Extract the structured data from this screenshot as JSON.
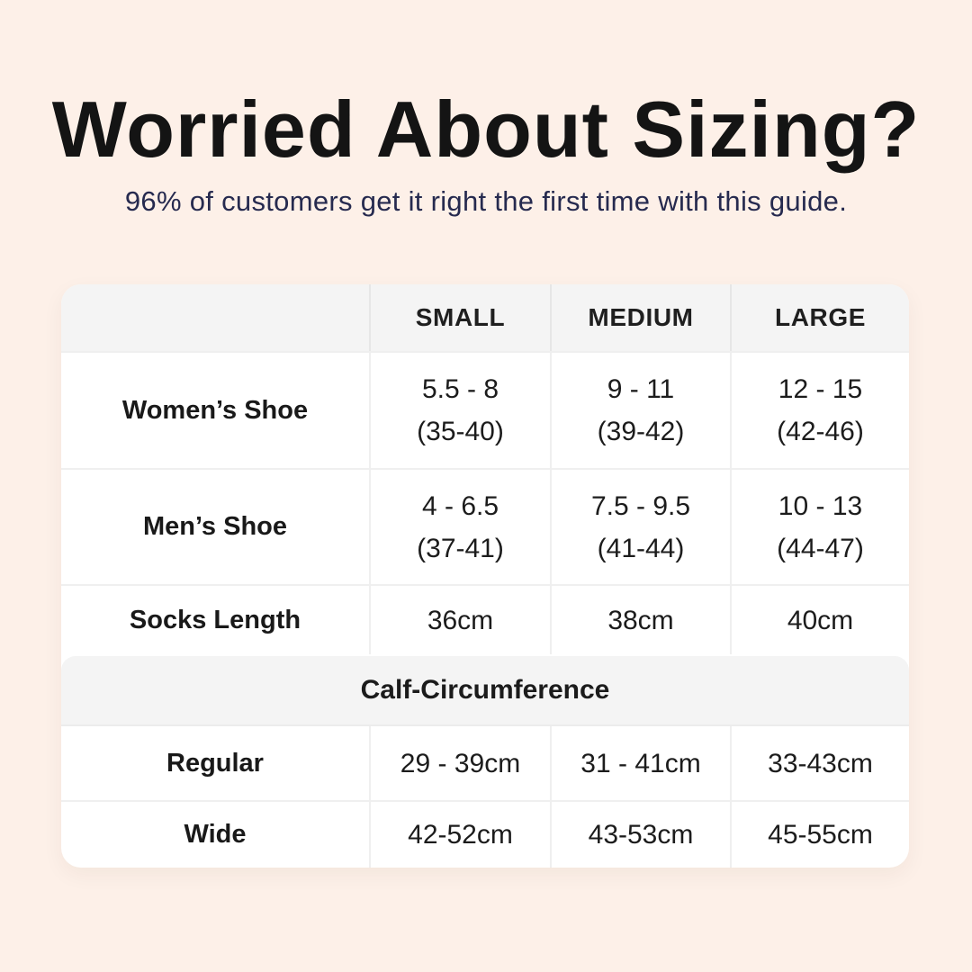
{
  "page": {
    "background_color": "#fdf0e8",
    "card_color": "#ffffff",
    "band_color": "#f4f4f4",
    "subtitle_color": "#262a4f",
    "title_color": "#141414"
  },
  "hero": {
    "title": "Worried About Sizing?",
    "subtitle": "96% of customers get it right the first time with this guide."
  },
  "table": {
    "columns": [
      "",
      "SMALL",
      "MEDIUM",
      "LARGE"
    ],
    "rows": [
      {
        "label": "Women’s Shoe",
        "values": [
          [
            "5.5 - 8",
            "(35-40)"
          ],
          [
            "9 - 11",
            "(39-42)"
          ],
          [
            "12 - 15",
            "(42-46)"
          ]
        ]
      },
      {
        "label": "Men’s Shoe",
        "values": [
          [
            "4 - 6.5",
            "(37-41)"
          ],
          [
            "7.5 - 9.5",
            "(41-44)"
          ],
          [
            "10 - 13",
            "(44-47)"
          ]
        ]
      },
      {
        "label": "Socks Length",
        "values": [
          [
            "36cm"
          ],
          [
            "38cm"
          ],
          [
            "40cm"
          ]
        ]
      }
    ],
    "section": {
      "label": "Calf-Circumference"
    },
    "section_rows": [
      {
        "label": "Regular",
        "values": [
          [
            "29 - 39cm"
          ],
          [
            "31 - 41cm"
          ],
          [
            "33-43cm"
          ]
        ]
      },
      {
        "label": "Wide",
        "values": [
          [
            "42-52cm"
          ],
          [
            "43-53cm"
          ],
          [
            "45-55cm"
          ]
        ]
      }
    ]
  }
}
